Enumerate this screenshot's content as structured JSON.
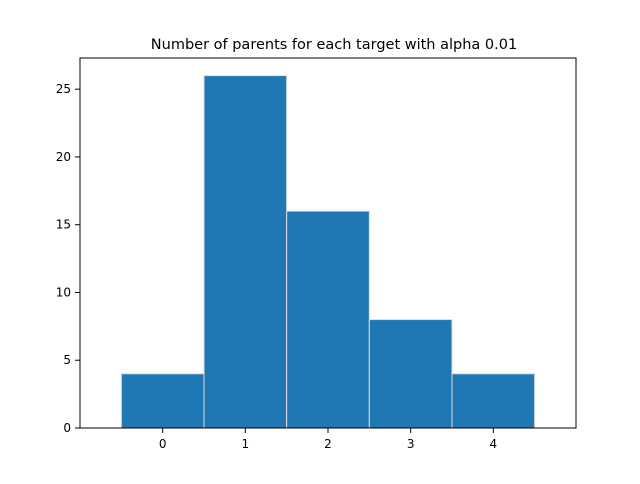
{
  "chart_data": {
    "type": "bar",
    "title": "Number of parents for each target with alpha 0.01",
    "xlabel": "",
    "ylabel": "",
    "categories": [
      0,
      1,
      2,
      3,
      4
    ],
    "values": [
      4,
      26,
      16,
      8,
      4
    ],
    "bin_edges": [
      -0.5,
      0.5,
      1.5,
      2.5,
      3.5,
      4.5
    ],
    "xlim": [
      -1.0,
      5.0
    ],
    "ylim": [
      0,
      27.3
    ],
    "x_ticks": [
      0,
      1,
      2,
      3,
      4
    ],
    "y_ticks": [
      0,
      5,
      10,
      15,
      20,
      25
    ],
    "grid": false,
    "legend": "none",
    "colors": {
      "bar_fill": "#1f77b4",
      "bar_edge": "#dddddd",
      "axes": "#000000"
    }
  }
}
